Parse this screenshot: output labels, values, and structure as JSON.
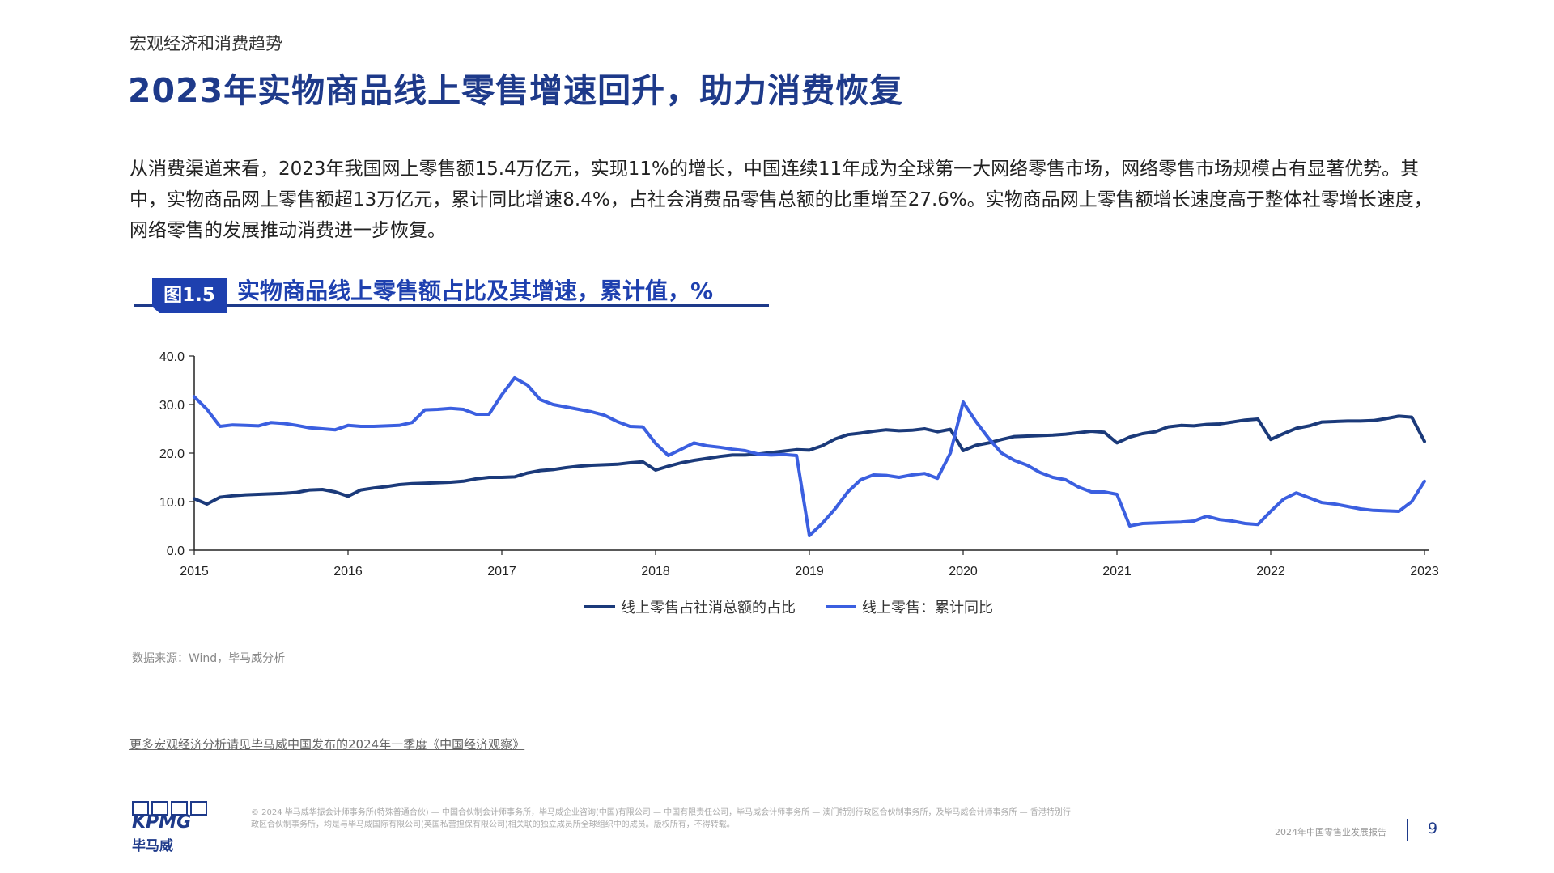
{
  "header": {
    "section": "宏观经济和消费趋势",
    "title": "2023年实物商品线上零售增速回升，助力消费恢复"
  },
  "body": {
    "paragraph": "从消费渠道来看，2023年我国网上零售额15.4万亿元，实现11%的增长，中国连续11年成为全球第一大网络零售市场，网络零售市场规模占有显著优势。其中，实物商品网上零售额超13万亿元，累计同比增速8.4%，占社会消费品零售总额的比重增至27.6%。实物商品网上零售额增长速度高于整体社零增长速度，网络零售的发展推动消费进一步恢复。"
  },
  "figure": {
    "tag": "图1.5",
    "title": "实物商品线上零售额占比及其增速，累计值，%",
    "source": "数据来源：Wind，毕马威分析"
  },
  "chart_data": {
    "type": "line",
    "x_start": "2015-01",
    "x_end": "2023-03",
    "x_ticks": [
      "2015",
      "2016",
      "2017",
      "2018",
      "2019",
      "2020",
      "2021",
      "2022",
      "2023"
    ],
    "y_ticks": [
      "0.0",
      "10.0",
      "20.0",
      "30.0",
      "40.0"
    ],
    "ylim": [
      0,
      40
    ],
    "grid": false,
    "legend_position": "bottom",
    "series": [
      {
        "name": "线上零售占社消总额的占比",
        "color": "#1B3A7A",
        "values": [
          10.6,
          9.5,
          10.9,
          11.2,
          11.4,
          11.5,
          11.6,
          11.7,
          11.9,
          12.4,
          12.5,
          12.0,
          11.1,
          12.4,
          12.8,
          13.1,
          13.5,
          13.7,
          13.8,
          13.9,
          14.0,
          14.2,
          14.7,
          15.0,
          15.0,
          15.1,
          15.9,
          16.4,
          16.6,
          17.0,
          17.3,
          17.5,
          17.6,
          17.7,
          18.0,
          18.2,
          16.5,
          17.3,
          18.0,
          18.5,
          18.9,
          19.3,
          19.6,
          19.6,
          19.8,
          20.1,
          20.4,
          20.7,
          20.6,
          21.5,
          22.9,
          23.8,
          24.1,
          24.5,
          24.8,
          24.6,
          24.7,
          25.0,
          24.4,
          24.9,
          20.5,
          21.6,
          22.1,
          22.8,
          23.4,
          23.5,
          23.6,
          23.7,
          23.9,
          24.2,
          24.5,
          24.3,
          22.1,
          23.3,
          24.0,
          24.4,
          25.4,
          25.7,
          25.6,
          25.9,
          26.0,
          26.4,
          26.8,
          27.0,
          22.8,
          24.0,
          25.1,
          25.6,
          26.4,
          26.5,
          26.6,
          26.6,
          26.7,
          27.1,
          27.6,
          27.4,
          22.4
        ]
      },
      {
        "name": "线上零售：累计同比",
        "color": "#3B5FE0",
        "values": [
          31.6,
          29.0,
          25.5,
          25.8,
          25.7,
          25.6,
          26.3,
          26.1,
          25.7,
          25.2,
          25.0,
          24.8,
          25.7,
          25.5,
          25.5,
          25.6,
          25.7,
          26.3,
          28.9,
          29.0,
          29.2,
          29.0,
          28.0,
          28.0,
          32.0,
          35.5,
          34.0,
          31.0,
          30.0,
          29.5,
          29.0,
          28.5,
          27.8,
          26.5,
          25.5,
          25.4,
          22.0,
          19.5,
          20.8,
          22.1,
          21.5,
          21.2,
          20.8,
          20.5,
          19.8,
          19.6,
          19.7,
          19.5,
          3.0,
          5.5,
          8.5,
          12.0,
          14.5,
          15.5,
          15.4,
          15.0,
          15.5,
          15.8,
          14.8,
          20.0,
          30.5,
          26.5,
          23.0,
          20.0,
          18.5,
          17.5,
          16.0,
          15.0,
          14.5,
          13.0,
          12.0,
          12.0,
          11.5,
          5.0,
          5.5,
          5.6,
          5.7,
          5.8,
          6.0,
          7.0,
          6.3,
          6.0,
          5.5,
          5.3,
          8.0,
          10.5,
          11.8,
          10.8,
          9.8,
          9.5,
          9.0,
          8.5,
          8.2,
          8.1,
          8.0,
          10.0,
          14.2
        ]
      }
    ]
  },
  "footer": {
    "more_link": "更多宏观经济分析请见毕马威中国发布的2024年一季度《中国经济观察》",
    "logo_text": "KPMG",
    "logo_cn": "毕马威",
    "legal": "© 2024 毕马威华振会计师事务所(特殊普通合伙) — 中国合伙制会计师事务所，毕马威企业咨询(中国)有限公司 — 中国有限责任公司，毕马威会计师事务所 — 澳门特别行政区合伙制事务所，及毕马威会计师事务所 — 香港特别行政区合伙制事务所，均是与毕马威国际有限公司(英国私营担保有限公司)相关联的独立成员所全球组织中的成员。版权所有，不得转载。",
    "doc_title": "2024年中国零售业发展报告",
    "page": "9"
  }
}
